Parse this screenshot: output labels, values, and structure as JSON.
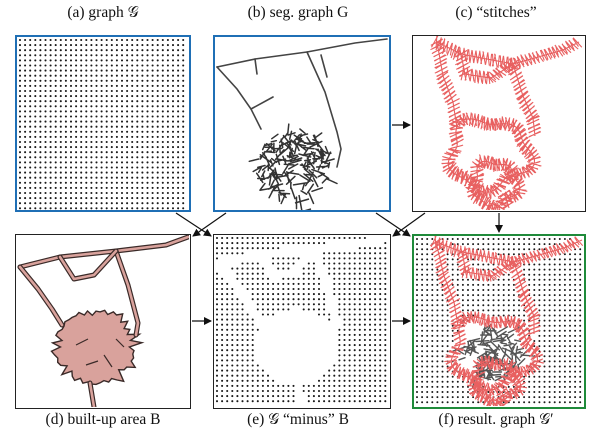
{
  "captions": {
    "a": "(a) graph 𝒢",
    "b": "(b) seg. graph G",
    "c": "(c) “stitches”",
    "d": "(d) built-up area B",
    "e": "(e) 𝒢 “minus” B",
    "f": "(f) result. graph 𝒢′"
  },
  "colors": {
    "blue_border": "#1f6fb5",
    "green_border": "#1f8a3a",
    "black_border": "#222222",
    "stitch_red": "#e86060",
    "area_fill": "#d9a29c",
    "dot": "#1a1a1a"
  }
}
